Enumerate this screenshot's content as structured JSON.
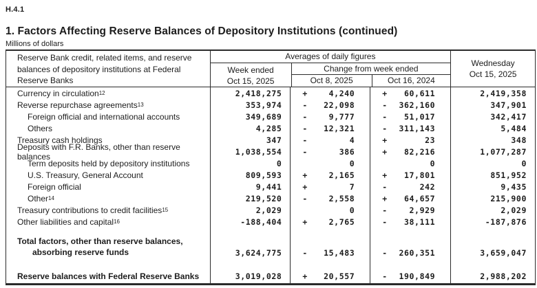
{
  "report_code": "H.4.1",
  "title": "1. Factors Affecting Reserve Balances of Depository Institutions (continued)",
  "units": "Millions of dollars",
  "header": {
    "stub": "Reserve Bank credit, related items, and reserve balances of depository institutions at Federal Reserve Banks",
    "averages_label": "Averages of daily figures",
    "week_ended": {
      "line1": "Week ended",
      "line2": "Oct 15, 2025"
    },
    "change_label": "Change from week ended",
    "change_col1": "Oct 8, 2025",
    "change_col2": "Oct 16, 2024",
    "wednesday": {
      "line1": "Wednesday",
      "line2": "Oct 15, 2025"
    }
  },
  "rows": [
    {
      "label": "Currency in circulation",
      "sup": "12",
      "w": "2,418,275",
      "s1": "+",
      "c1": "4,240",
      "s2": "+",
      "c2": "60,611",
      "wd": "2,419,358"
    },
    {
      "label": "Reverse repurchase agreements",
      "sup": "13",
      "w": "353,974",
      "s1": "-",
      "c1": "22,098",
      "s2": "-",
      "c2": "362,160",
      "wd": "347,901"
    },
    {
      "label": "Foreign official and international accounts",
      "w": "349,689",
      "s1": "-",
      "c1": "9,777",
      "s2": "-",
      "c2": "51,017",
      "wd": "342,417"
    },
    {
      "label": "Others",
      "w": "4,285",
      "s1": "-",
      "c1": "12,321",
      "s2": "-",
      "c2": "311,143",
      "wd": "5,484"
    },
    {
      "label": "Treasury cash holdings",
      "w": "347",
      "s1": "-",
      "c1": "4",
      "s2": "+",
      "c2": "23",
      "wd": "348"
    },
    {
      "label": "Deposits with F.R. Banks, other than reserve balances",
      "w": "1,038,554",
      "s1": "-",
      "c1": "386",
      "s2": "+",
      "c2": "82,216",
      "wd": "1,077,287"
    },
    {
      "label": "Term deposits held by depository institutions",
      "w": "0",
      "s1": "",
      "c1": "0",
      "s2": "",
      "c2": "0",
      "wd": "0"
    },
    {
      "label": "U.S. Treasury, General Account",
      "w": "809,593",
      "s1": "+",
      "c1": "2,165",
      "s2": "+",
      "c2": "17,801",
      "wd": "851,952"
    },
    {
      "label": "Foreign official",
      "w": "9,441",
      "s1": "+",
      "c1": "7",
      "s2": "-",
      "c2": "242",
      "wd": "9,435"
    },
    {
      "label": "Other",
      "sup": "14",
      "w": "219,520",
      "s1": "-",
      "c1": "2,558",
      "s2": "+",
      "c2": "64,657",
      "wd": "215,900"
    },
    {
      "label": "Treasury contributions to credit facilities",
      "sup": "15",
      "w": "2,029",
      "s1": "",
      "c1": "0",
      "s2": "-",
      "c2": "2,929",
      "wd": "2,029"
    },
    {
      "label": "Other liabilities and capital",
      "sup": "16",
      "w": "-188,404",
      "s1": "+",
      "c1": "2,765",
      "s2": "-",
      "c2": "38,111",
      "wd": "-187,876"
    }
  ],
  "totals": [
    {
      "label_line1": "Total factors, other than reserve balances,",
      "label_line2": "absorbing reserve funds",
      "w": "3,624,775",
      "s1": "-",
      "c1": "15,483",
      "s2": "-",
      "c2": "260,351",
      "wd": "3,659,047"
    },
    {
      "label": "Reserve balances with Federal Reserve Banks",
      "w": "3,019,028",
      "s1": "+",
      "c1": "20,557",
      "s2": "-",
      "c2": "190,849",
      "wd": "2,988,202"
    }
  ]
}
